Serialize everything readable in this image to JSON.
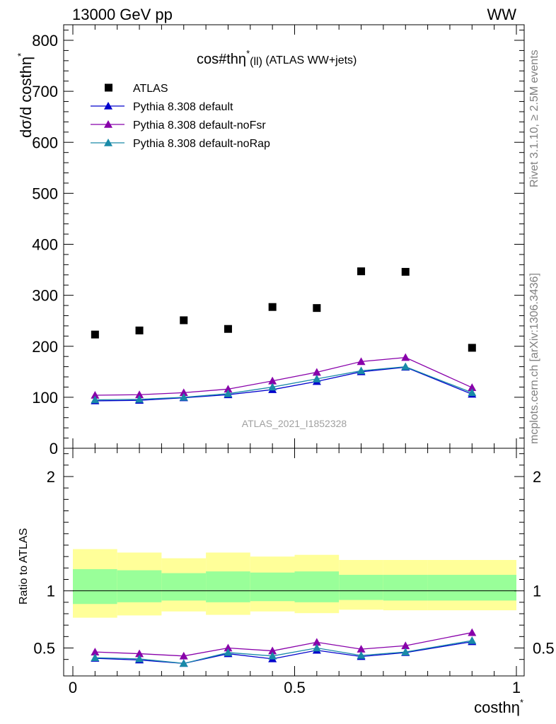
{
  "header": {
    "left": "13000 GeV pp",
    "right": "WW"
  },
  "side_labels": {
    "rivet": "Rivet 3.1.10, ≥ 2.5M events",
    "site": "mcplots.cern.ch [arXiv:1306.3436]"
  },
  "chart_data": [
    {
      "type": "scatter",
      "title_main": "cos#thη",
      "title_sup": "*",
      "title_sub": "(ll)",
      "title_tail": " (ATLAS WW+jets)",
      "ylabel": "dσ/d costhη",
      "ylabel_sup": "*",
      "ylim": [
        0,
        830
      ],
      "xlim": [
        -0.02,
        1.04
      ],
      "yticks": [
        0,
        100,
        200,
        300,
        400,
        500,
        600,
        700,
        800
      ],
      "grid": false,
      "legend_position": "top-left",
      "analysis_label": "ATLAS_2021_I1852328",
      "x": [
        0.05,
        0.15,
        0.25,
        0.35,
        0.45,
        0.55,
        0.65,
        0.75,
        0.9
      ],
      "series": [
        {
          "name": "ATLAS",
          "color": "#000000",
          "marker": "square",
          "values": [
            223,
            231,
            251,
            234,
            277,
            275,
            347,
            346,
            197
          ]
        },
        {
          "name": "Pythia 8.308 default",
          "color": "#0000cc",
          "marker": "triangle",
          "values": [
            93,
            94,
            99,
            105,
            115,
            131,
            150,
            159,
            106
          ]
        },
        {
          "name": "Pythia 8.308 default-noFsr",
          "color": "#8800aa",
          "marker": "triangle",
          "values": [
            104,
            105,
            109,
            116,
            132,
            149,
            170,
            178,
            119
          ]
        },
        {
          "name": "Pythia 8.308 default-noRap",
          "color": "#1a8aa8",
          "marker": "triangle",
          "values": [
            95,
            96,
            100,
            107,
            120,
            136,
            152,
            160,
            109
          ]
        }
      ]
    },
    {
      "type": "line",
      "ylabel": "Ratio to ATLAS",
      "xlabel": "costhη",
      "xlabel_sup": "*",
      "ylim": [
        0.33,
        2.3
      ],
      "xlim": [
        -0.02,
        1.04
      ],
      "yticks": [
        0.5,
        1,
        2
      ],
      "ytick_labels": [
        "0.5",
        "1",
        "2"
      ],
      "xticks": [
        0,
        0.5,
        1
      ],
      "xtick_labels": [
        "0",
        "0.5",
        "1"
      ],
      "reference": 1,
      "bins": [
        [
          0.0,
          0.1
        ],
        [
          0.1,
          0.2
        ],
        [
          0.2,
          0.3
        ],
        [
          0.3,
          0.4
        ],
        [
          0.4,
          0.5
        ],
        [
          0.5,
          0.6
        ],
        [
          0.6,
          0.7
        ],
        [
          0.7,
          0.8
        ],
        [
          0.8,
          1.0
        ]
      ],
      "band_outer": [
        [
          0.765,
          1.365
        ],
        [
          0.785,
          1.335
        ],
        [
          0.82,
          1.285
        ],
        [
          0.79,
          1.335
        ],
        [
          0.82,
          1.3
        ],
        [
          0.805,
          1.315
        ],
        [
          0.835,
          1.27
        ],
        [
          0.83,
          1.27
        ],
        [
          0.83,
          1.27
        ]
      ],
      "band_inner": [
        [
          0.885,
          1.19
        ],
        [
          0.9,
          1.18
        ],
        [
          0.915,
          1.155
        ],
        [
          0.9,
          1.17
        ],
        [
          0.91,
          1.16
        ],
        [
          0.9,
          1.17
        ],
        [
          0.92,
          1.14
        ],
        [
          0.915,
          1.14
        ],
        [
          0.915,
          1.14
        ]
      ],
      "band_colors": {
        "outer": "#ffff99",
        "inner": "#99ff99"
      },
      "x": [
        0.05,
        0.15,
        0.25,
        0.35,
        0.45,
        0.55,
        0.65,
        0.75,
        0.9
      ],
      "series": [
        {
          "name": "Pythia 8.308 default",
          "color": "#0000cc",
          "values": [
            0.41,
            0.395,
            0.365,
            0.45,
            0.405,
            0.48,
            0.425,
            0.46,
            0.555
          ]
        },
        {
          "name": "Pythia 8.308 default-noFsr",
          "color": "#8800aa",
          "values": [
            0.465,
            0.45,
            0.43,
            0.5,
            0.475,
            0.55,
            0.49,
            0.52,
            0.635
          ]
        },
        {
          "name": "Pythia 8.308 default-noRap",
          "color": "#1a8aa8",
          "values": [
            0.415,
            0.405,
            0.365,
            0.46,
            0.43,
            0.5,
            0.435,
            0.465,
            0.565
          ]
        }
      ]
    }
  ]
}
